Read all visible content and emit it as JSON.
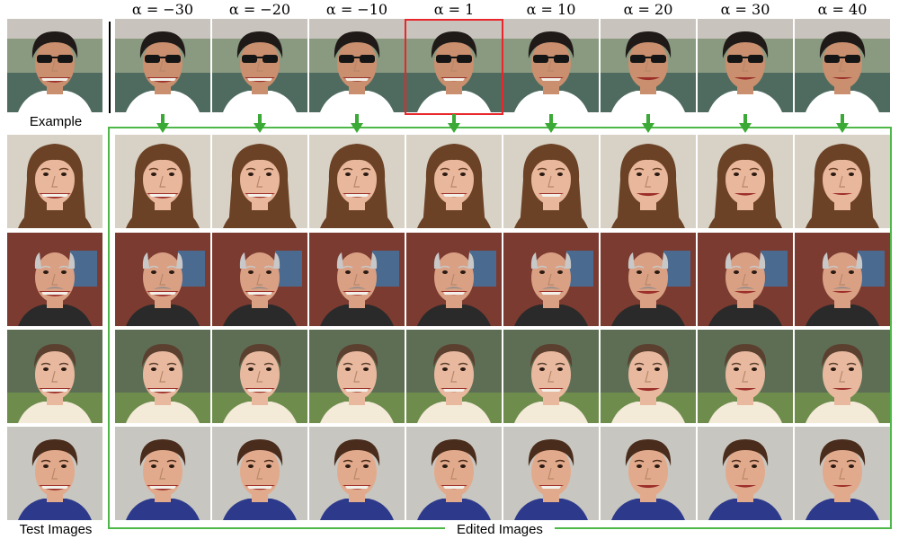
{
  "header": {
    "alpha_labels": [
      "α = −30",
      "α = −20",
      "α = −10",
      "α = 1",
      "α = 10",
      "α = 20",
      "α = 30",
      "α = 40"
    ],
    "highlighted_label": "α = 1"
  },
  "captions": {
    "example": "Example",
    "test_images": "Test Images",
    "edited_images": "Edited Images"
  },
  "colors": {
    "frame": "#4db848",
    "arrow": "#3aa935",
    "highlight": "#e8262b"
  },
  "test_rows": [
    {
      "subject": "young woman, long brown hair"
    },
    {
      "subject": "older bald man, grey mustache"
    },
    {
      "subject": "young woman, hair pulled back"
    },
    {
      "subject": "short-haired person, dark hair"
    }
  ]
}
